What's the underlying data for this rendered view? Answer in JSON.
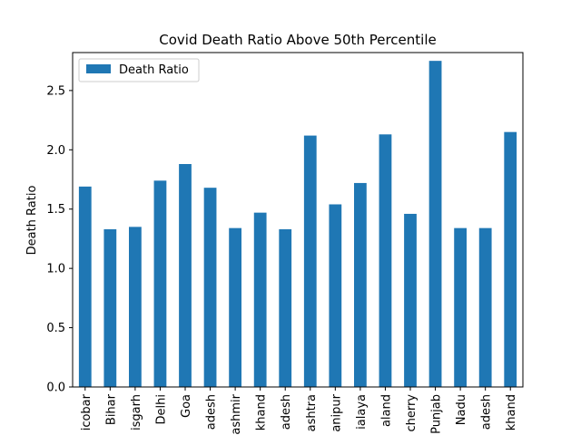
{
  "chart_data": {
    "type": "bar",
    "title": "Covid Death Ratio Above 50th Percentile",
    "xlabel": "",
    "ylabel": "Death Ratio",
    "ylim": [
      0,
      2.82
    ],
    "yticks": [
      "0.0",
      "0.5",
      "1.0",
      "1.5",
      "2.0",
      "2.5"
    ],
    "grid": false,
    "legend_position": "top-left",
    "categories": [
      "icobar",
      "Bihar",
      "isgarh",
      "Delhi",
      "Goa",
      "adesh",
      "ashmir",
      "khand",
      "adesh",
      "ashtra",
      "anipur",
      "ialaya",
      "aland",
      "cherry",
      "Punjab",
      "Nadu",
      "adesh",
      "khand"
    ],
    "series": [
      {
        "name": "Death Ratio",
        "color": "#1f77b4",
        "values": [
          1.69,
          1.33,
          1.35,
          1.74,
          1.88,
          1.68,
          1.34,
          1.47,
          1.33,
          2.12,
          1.54,
          1.72,
          2.13,
          1.46,
          2.75,
          1.34,
          1.34,
          2.15
        ]
      }
    ]
  }
}
